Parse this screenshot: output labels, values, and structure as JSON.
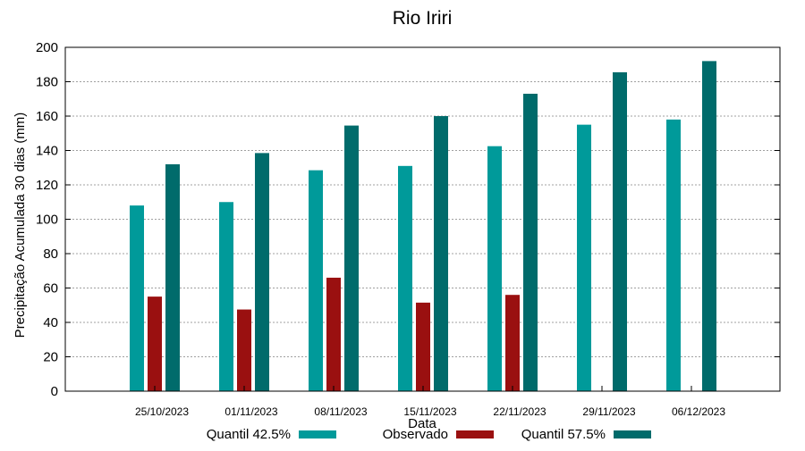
{
  "chart_data": {
    "type": "bar",
    "title": "Rio Iriri",
    "xlabel": "Data",
    "ylabel": "Precipitação Acumulada 30 dias (mm)",
    "ylim": [
      0,
      200
    ],
    "yticks": [
      0,
      20,
      40,
      60,
      80,
      100,
      120,
      140,
      160,
      180,
      200
    ],
    "grid": true,
    "legend_position": "bottom",
    "categories": [
      "25/10/2023",
      "01/11/2023",
      "08/11/2023",
      "15/11/2023",
      "22/11/2023",
      "29/11/2023",
      "06/12/2023"
    ],
    "series": [
      {
        "name": "Quantil 42.5%",
        "color": "#009a9a",
        "values": [
          108,
          110,
          128.5,
          131,
          142.5,
          155,
          158
        ]
      },
      {
        "name": "Observado",
        "color": "#9a1010",
        "values": [
          55,
          47.5,
          66,
          51.5,
          56,
          null,
          null
        ]
      },
      {
        "name": "Quantil 57.5%",
        "color": "#006b6b",
        "values": [
          132,
          138.5,
          154.5,
          160,
          173,
          185.5,
          192
        ]
      }
    ]
  }
}
